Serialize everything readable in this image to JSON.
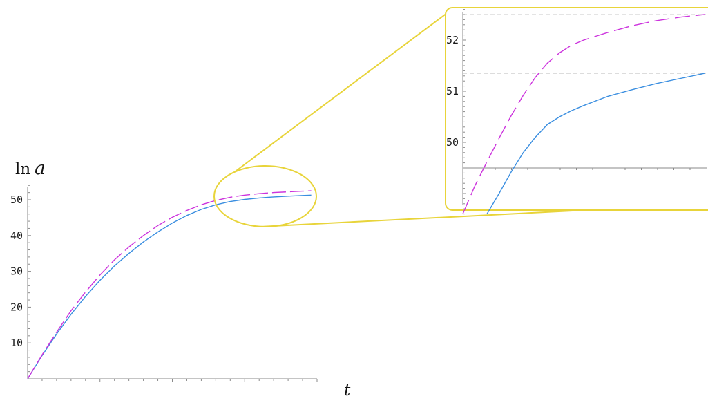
{
  "colors": {
    "series_solid": "#3a8ee0",
    "series_dashed": "#cc33dd",
    "highlight": "#e8d43a",
    "axis": "#8a8a8a",
    "grid": "#c8c8c8",
    "background": "#ffffff"
  },
  "chart_data": [
    {
      "id": "main",
      "type": "line",
      "title": "",
      "xlabel_main": "t",
      "ylabel_prefix": "ln",
      "ylabel_var": "a",
      "yticks": [
        10,
        20,
        30,
        40,
        50
      ],
      "ylim": [
        0,
        56
      ],
      "xlim": [
        0,
        1
      ],
      "x_minor_ticks": 20,
      "grid": false,
      "series": [
        {
          "style": "solid",
          "x": [
            0,
            0.05,
            0.1,
            0.15,
            0.2,
            0.25,
            0.3,
            0.35,
            0.4,
            0.45,
            0.5,
            0.55,
            0.6,
            0.65,
            0.7,
            0.75,
            0.8,
            0.85,
            0.9,
            0.95,
            0.98
          ],
          "y": [
            0,
            6.5,
            12.5,
            18,
            23,
            27.5,
            31.5,
            35,
            38.2,
            41,
            43.5,
            45.6,
            47.3,
            48.6,
            49.5,
            50.1,
            50.5,
            50.8,
            51.0,
            51.2,
            51.3
          ]
        },
        {
          "style": "dashed",
          "x": [
            0,
            0.05,
            0.1,
            0.15,
            0.2,
            0.25,
            0.3,
            0.35,
            0.4,
            0.45,
            0.5,
            0.55,
            0.6,
            0.65,
            0.7,
            0.75,
            0.8,
            0.85,
            0.9,
            0.95,
            0.98
          ],
          "y": [
            0,
            6.7,
            13,
            19,
            24.2,
            29,
            33.2,
            36.8,
            40,
            42.8,
            45.1,
            47,
            48.6,
            49.8,
            50.7,
            51.3,
            51.7,
            52.0,
            52.2,
            52.4,
            52.5
          ]
        }
      ]
    },
    {
      "id": "inset",
      "type": "line",
      "title": "",
      "yticks": [
        50,
        51,
        52
      ],
      "ylim": [
        48.55,
        52.75
      ],
      "xlim": [
        0,
        1
      ],
      "x_minor_ticks": 15,
      "grid": true,
      "gridlines_y": [
        51.35,
        52.5
      ],
      "series": [
        {
          "style": "solid",
          "x": [
            0.1,
            0.15,
            0.2,
            0.25,
            0.3,
            0.35,
            0.4,
            0.45,
            0.5,
            0.6,
            0.7,
            0.8,
            0.9,
            1.0
          ],
          "y": [
            48.6,
            49.0,
            49.42,
            49.8,
            50.1,
            50.35,
            50.5,
            50.62,
            50.72,
            50.9,
            51.03,
            51.15,
            51.25,
            51.35
          ]
        },
        {
          "style": "dashed",
          "x": [
            0.0,
            0.05,
            0.1,
            0.15,
            0.2,
            0.25,
            0.3,
            0.35,
            0.4,
            0.45,
            0.5,
            0.6,
            0.7,
            0.8,
            0.9,
            1.0
          ],
          "y": [
            48.6,
            49.15,
            49.62,
            50.08,
            50.52,
            50.92,
            51.27,
            51.55,
            51.75,
            51.9,
            52.0,
            52.15,
            52.28,
            52.38,
            52.45,
            52.5
          ]
        }
      ]
    }
  ]
}
